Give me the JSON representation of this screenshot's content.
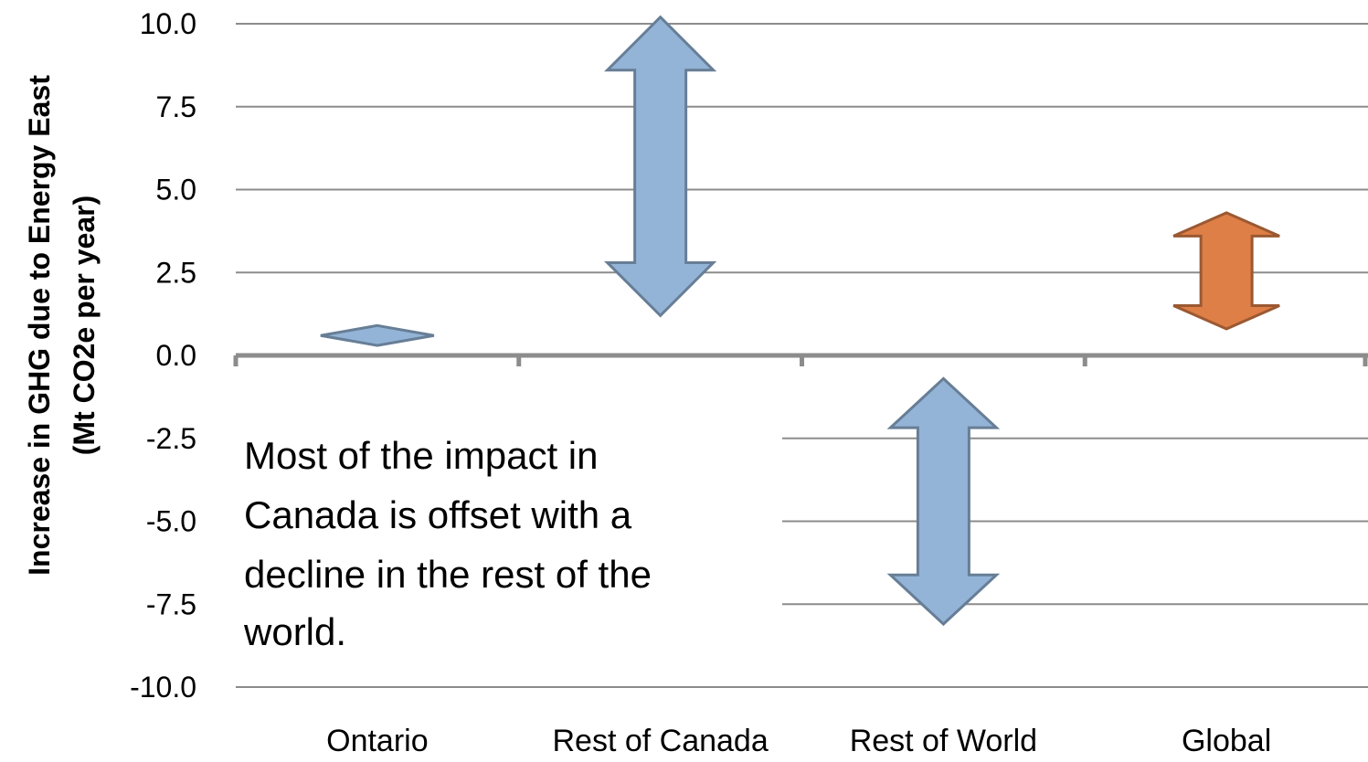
{
  "chart_data": {
    "type": "floating-range",
    "title": "",
    "xlabel": "",
    "ylabel": {
      "line1": "Increase in GHG due to Energy East",
      "line2": "(Mt CO2e per year)"
    },
    "ylim": [
      -10.0,
      10.0
    ],
    "yticks": [
      10.0,
      7.5,
      5.0,
      2.5,
      0.0,
      -2.5,
      -5.0,
      -7.5,
      -10.0
    ],
    "ytick_labels": [
      "10.0",
      "7.5",
      "5.0",
      "2.5",
      "0.0",
      "-2.5",
      "-5.0",
      "-7.5",
      "-10.0"
    ],
    "grid": true,
    "categories": [
      "Ontario",
      "Rest of Canada",
      "Rest of World",
      "Global"
    ],
    "ranges": [
      {
        "category": "Ontario",
        "low": 0.3,
        "high": 0.9,
        "color": "#93b4d6"
      },
      {
        "category": "Rest of Canada",
        "low": 1.2,
        "high": 10.2,
        "color": "#93b4d6"
      },
      {
        "category": "Rest of World",
        "low": -8.1,
        "high": -0.7,
        "color": "#93b4d6"
      },
      {
        "category": "Global",
        "low": 0.8,
        "high": 4.3,
        "color": "#de7f47"
      }
    ],
    "annotation": {
      "lines": [
        "Most of the impact in",
        "Canada is offset with a",
        "decline in the rest of the",
        "world."
      ]
    }
  }
}
